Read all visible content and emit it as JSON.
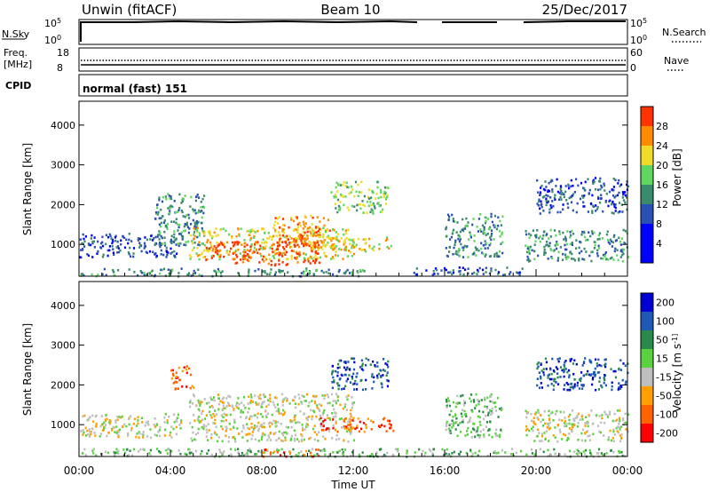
{
  "header": {
    "station": "Unwin (fitACF)",
    "beam": "Beam 10",
    "date": "25/Dec/2017"
  },
  "labels": {
    "nsky": "N.Sky",
    "nsearch": "N.Search",
    "freq_line1": "Freq.",
    "freq_line2": "[MHz]",
    "nave": "Nave",
    "cpid": "CPID",
    "cpid_value": "normal (fast) 151"
  },
  "scales": {
    "nsky_ticks": [
      "10^5",
      "10^0"
    ],
    "nsearch_ticks": [
      "10^5",
      "10^0"
    ],
    "freq_ticks": [
      "18",
      "8"
    ],
    "nave_ticks": [
      "60",
      "0"
    ]
  },
  "colors": {
    "power": [
      "#0000ff",
      "#2a50b4",
      "#3a8a6e",
      "#5fd65f",
      "#f0dc28",
      "#ff8c00",
      "#ff3200"
    ],
    "velocity": [
      "#ff0000",
      "#ff6400",
      "#ffa000",
      "#bebebe",
      "#5ad240",
      "#2a8a4a",
      "#1e5ab4",
      "#0000d2"
    ],
    "ground": "#bebebe"
  },
  "chart_data": [
    {
      "type": "heatmap",
      "title": "Power",
      "xlabel": "Time UT",
      "ylabel": "Slant Range [km]",
      "colorbar_label": "Power [dB]",
      "xlim": [
        "00:00",
        "00:00"
      ],
      "ylim": [
        200,
        4600
      ],
      "x_ticks": [
        "00:00",
        "04:00",
        "08:00",
        "12:00",
        "16:00",
        "20:00",
        "00:00"
      ],
      "y_ticks": [
        1000,
        2000,
        3000,
        4000
      ],
      "colorbar_ticks": [
        "4",
        "8",
        "12",
        "16",
        "20",
        "24",
        "28"
      ],
      "colorbar_range": [
        0,
        32
      ],
      "regions": [
        {
          "t0": 0.0,
          "t1": 12.5,
          "r0": 220,
          "r1": 420,
          "level": 2
        },
        {
          "t0": 0.0,
          "t1": 4.5,
          "r0": 700,
          "r1": 1300,
          "level": 1
        },
        {
          "t0": 3.3,
          "t1": 5.5,
          "r0": 1000,
          "r1": 2300,
          "level": 2
        },
        {
          "t0": 4.8,
          "t1": 12.0,
          "r0": 650,
          "r1": 1450,
          "level": 4
        },
        {
          "t0": 5.5,
          "t1": 10.5,
          "r0": 500,
          "r1": 1100,
          "level": 6
        },
        {
          "t0": 8.5,
          "t1": 11.0,
          "r0": 1050,
          "r1": 1750,
          "level": 5
        },
        {
          "t0": 10.5,
          "t1": 13.8,
          "r0": 850,
          "r1": 1200,
          "level": 4
        },
        {
          "t0": 11.0,
          "t1": 13.5,
          "r0": 1800,
          "r1": 2600,
          "level": 3
        },
        {
          "t0": 14.5,
          "t1": 19.5,
          "r0": 250,
          "r1": 450,
          "level": 1
        },
        {
          "t0": 16.0,
          "t1": 18.5,
          "r0": 700,
          "r1": 1800,
          "level": 2
        },
        {
          "t0": 19.5,
          "t1": 24.0,
          "r0": 600,
          "r1": 1400,
          "level": 2
        },
        {
          "t0": 20.0,
          "t1": 24.0,
          "r0": 1800,
          "r1": 2700,
          "level": 1
        }
      ]
    },
    {
      "type": "heatmap",
      "title": "Velocity",
      "xlabel": "Time UT",
      "ylabel": "Slant Range [km]",
      "colorbar_label": "Velocity [m s^-1]",
      "xlim": [
        "00:00",
        "00:00"
      ],
      "ylim": [
        200,
        4600
      ],
      "x_ticks": [
        "00:00",
        "04:00",
        "08:00",
        "12:00",
        "16:00",
        "20:00",
        "00:00"
      ],
      "y_ticks": [
        1000,
        2000,
        3000,
        4000
      ],
      "colorbar_ticks": [
        "200",
        "100",
        "50",
        "15",
        "-15",
        "-50",
        "-100",
        "-200"
      ],
      "regions": [
        {
          "t0": 0.0,
          "t1": 24.0,
          "r0": 220,
          "r1": 420,
          "level": 4
        },
        {
          "t0": 0.0,
          "t1": 4.5,
          "r0": 700,
          "r1": 1300,
          "level": 3
        },
        {
          "t0": 4.0,
          "t1": 5.0,
          "r0": 1900,
          "r1": 2500,
          "level": 1
        },
        {
          "t0": 4.8,
          "t1": 12.0,
          "r0": 600,
          "r1": 1800,
          "level": 3
        },
        {
          "t0": 8.0,
          "t1": 10.5,
          "r0": 220,
          "r1": 400,
          "level": 1
        },
        {
          "t0": 10.5,
          "t1": 13.8,
          "r0": 850,
          "r1": 1200,
          "level": 1
        },
        {
          "t0": 11.0,
          "t1": 13.5,
          "r0": 1900,
          "r1": 2700,
          "level": 6
        },
        {
          "t0": 16.0,
          "t1": 18.5,
          "r0": 700,
          "r1": 1800,
          "level": 4
        },
        {
          "t0": 19.5,
          "t1": 24.0,
          "r0": 600,
          "r1": 1400,
          "level": 3
        },
        {
          "t0": 20.0,
          "t1": 24.0,
          "r0": 1900,
          "r1": 2700,
          "level": 6
        }
      ]
    }
  ]
}
